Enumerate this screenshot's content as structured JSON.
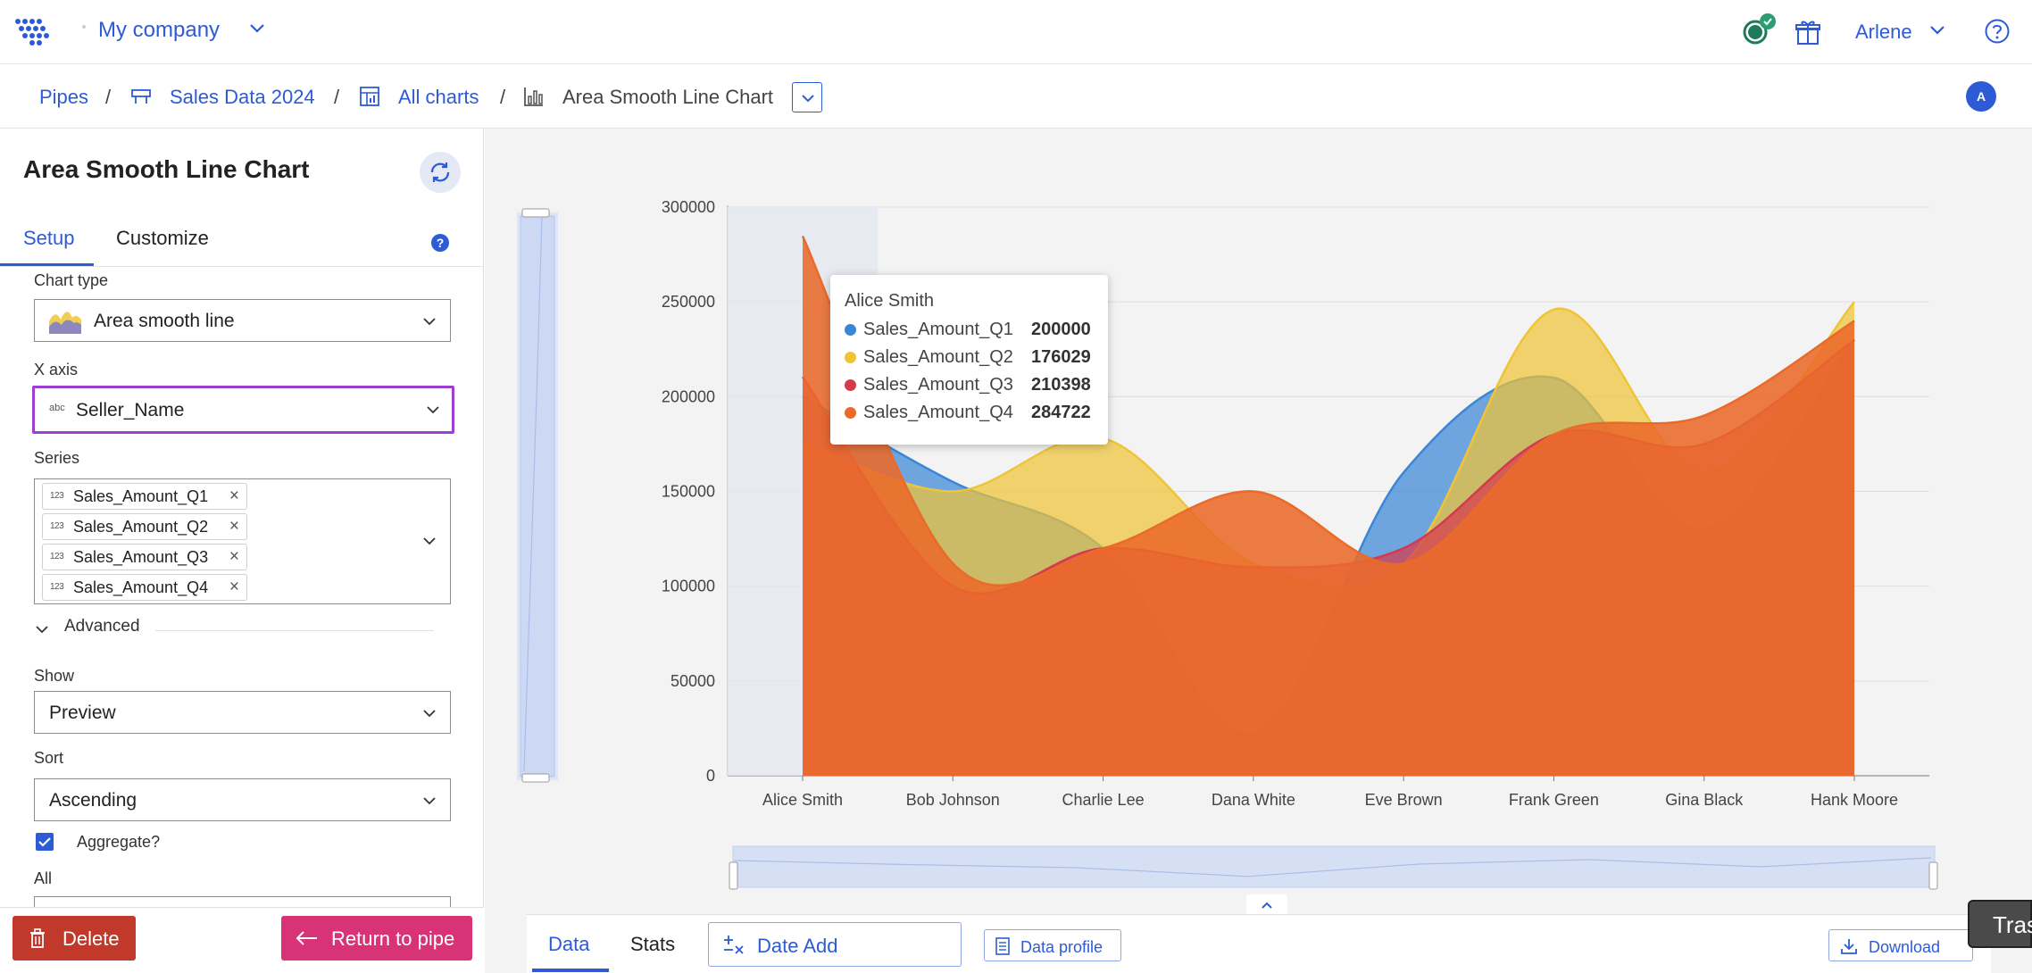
{
  "topbar": {
    "company": "My company",
    "user": "Arlene"
  },
  "breadcrumb": {
    "items": [
      "Pipes",
      "Sales Data 2024",
      "All charts",
      "Area Smooth Line Chart"
    ],
    "avatar_initial": "A"
  },
  "panel": {
    "title": "Area Smooth Line Chart",
    "tabs": [
      "Setup",
      "Customize"
    ],
    "chart_type_label": "Chart type",
    "chart_type_value": "Area smooth line",
    "x_axis_label": "X axis",
    "x_axis_type": "abc",
    "x_axis_value": "Seller_Name",
    "series_label": "Series",
    "series_type": "123",
    "series": [
      "Sales_Amount_Q1",
      "Sales_Amount_Q2",
      "Sales_Amount_Q3",
      "Sales_Amount_Q4"
    ],
    "advanced_label": "Advanced",
    "show_label": "Show",
    "show_value": "Preview",
    "sort_label": "Sort",
    "sort_value": "Ascending",
    "aggregate_label": "Aggregate?",
    "aggregate_checked": true,
    "all_label": "All",
    "delete_label": "Delete",
    "return_label": "Return to pipe"
  },
  "bottom": {
    "tabs": [
      "Data",
      "Stats"
    ],
    "date_add_label": "Date Add",
    "data_profile_label": "Data profile",
    "download_label": "Download",
    "trash_label": "Tras"
  },
  "tooltip": {
    "title": "Alice Smith",
    "rows": [
      {
        "name": "Sales_Amount_Q1",
        "value": "200000",
        "color": "#3b86d6"
      },
      {
        "name": "Sales_Amount_Q2",
        "value": "176029",
        "color": "#f0c437"
      },
      {
        "name": "Sales_Amount_Q3",
        "value": "210398",
        "color": "#d6394e"
      },
      {
        "name": "Sales_Amount_Q4",
        "value": "284722",
        "color": "#ea6a2a"
      }
    ]
  },
  "colors": {
    "accent": "#2d5bd6",
    "delete_button": "#c0392b",
    "return_button": "#d93377",
    "focus_border": "#9c3fd0"
  },
  "chart_data": {
    "type": "area",
    "categories": [
      "Alice Smith",
      "Bob Johnson",
      "Charlie Lee",
      "Dana White",
      "Eve Brown",
      "Frank Green",
      "Gina Black",
      "Hank Moore"
    ],
    "series": [
      {
        "name": "Sales_Amount_Q1",
        "color": "#3b86d6",
        "values": [
          200000,
          155000,
          120000,
          22000,
          160000,
          210000,
          130000,
          230000
        ]
      },
      {
        "name": "Sales_Amount_Q2",
        "color": "#f0c437",
        "values": [
          176029,
          150000,
          178000,
          112000,
          112000,
          246000,
          160000,
          250000
        ]
      },
      {
        "name": "Sales_Amount_Q3",
        "color": "#d6394e",
        "values": [
          210398,
          100000,
          120000,
          110000,
          120000,
          180000,
          175000,
          230000
        ]
      },
      {
        "name": "Sales_Amount_Q4",
        "color": "#ea6a2a",
        "values": [
          284722,
          112000,
          120000,
          150000,
          112000,
          180000,
          190000,
          240000
        ]
      }
    ],
    "yticks": [
      "300000",
      "250000",
      "200000",
      "150000",
      "100000",
      "50000",
      "0"
    ],
    "ylim": [
      0,
      300000
    ],
    "grid": true,
    "highlighted_category": "Alice Smith"
  }
}
